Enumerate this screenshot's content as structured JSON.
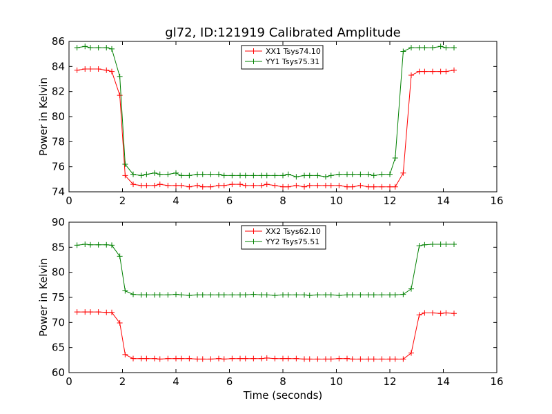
{
  "title": "gl72, ID:121919 Calibrated Amplitude",
  "chart_data": [
    {
      "type": "line",
      "title": "gl72, ID:121919 Calibrated Amplitude",
      "xlabel": "",
      "ylabel": "Power in Kelvin",
      "xlim": [
        0,
        16
      ],
      "ylim": [
        74,
        86
      ],
      "xticks": [
        "0",
        "2",
        "4",
        "6",
        "8",
        "10",
        "12",
        "14",
        "16"
      ],
      "yticks": [
        "74",
        "76",
        "78",
        "80",
        "82",
        "84",
        "86"
      ],
      "grid": false,
      "legend_position": "top-center",
      "x": [
        0.3,
        0.6,
        0.8,
        1.1,
        1.4,
        1.6,
        1.9,
        2.1,
        2.4,
        2.7,
        2.9,
        3.2,
        3.4,
        3.7,
        4.0,
        4.2,
        4.5,
        4.8,
        5.0,
        5.3,
        5.6,
        5.8,
        6.1,
        6.4,
        6.6,
        6.9,
        7.2,
        7.4,
        7.7,
        8.0,
        8.2,
        8.5,
        8.8,
        9.0,
        9.3,
        9.6,
        9.8,
        10.1,
        10.4,
        10.6,
        10.9,
        11.2,
        11.4,
        11.7,
        12.0,
        12.2,
        12.5,
        12.8,
        13.1,
        13.3,
        13.6,
        13.9,
        14.1,
        14.4
      ],
      "series": [
        {
          "name": "XX1 Tsys74.10",
          "color": "#ff0000",
          "values": [
            83.7,
            83.8,
            83.8,
            83.8,
            83.7,
            83.6,
            81.7,
            75.3,
            74.6,
            74.5,
            74.5,
            74.5,
            74.6,
            74.5,
            74.5,
            74.5,
            74.4,
            74.5,
            74.4,
            74.4,
            74.5,
            74.5,
            74.6,
            74.6,
            74.5,
            74.5,
            74.5,
            74.6,
            74.5,
            74.4,
            74.4,
            74.5,
            74.4,
            74.5,
            74.5,
            74.5,
            74.5,
            74.5,
            74.4,
            74.4,
            74.5,
            74.4,
            74.4,
            74.4,
            74.4,
            74.4,
            75.5,
            83.3,
            83.6,
            83.6,
            83.6,
            83.6,
            83.6,
            83.7
          ]
        },
        {
          "name": "YY1 Tsys75.31",
          "color": "#008000",
          "values": [
            85.5,
            85.6,
            85.5,
            85.5,
            85.5,
            85.4,
            83.2,
            76.2,
            75.4,
            75.3,
            75.4,
            75.5,
            75.4,
            75.4,
            75.5,
            75.3,
            75.3,
            75.4,
            75.4,
            75.4,
            75.4,
            75.3,
            75.3,
            75.3,
            75.3,
            75.3,
            75.3,
            75.3,
            75.3,
            75.3,
            75.4,
            75.2,
            75.3,
            75.3,
            75.3,
            75.2,
            75.3,
            75.4,
            75.4,
            75.4,
            75.4,
            75.4,
            75.3,
            75.4,
            75.4,
            76.7,
            85.2,
            85.5,
            85.5,
            85.5,
            85.5,
            85.6,
            85.5,
            85.5
          ]
        }
      ]
    },
    {
      "type": "line",
      "title": "",
      "xlabel": "Time (seconds)",
      "ylabel": "Power in Kelvin",
      "xlim": [
        0,
        16
      ],
      "ylim": [
        60,
        90
      ],
      "xticks": [
        "0",
        "2",
        "4",
        "6",
        "8",
        "10",
        "12",
        "14",
        "16"
      ],
      "yticks": [
        "60",
        "65",
        "70",
        "75",
        "80",
        "85",
        "90"
      ],
      "grid": false,
      "legend_position": "top-center",
      "x": [
        0.3,
        0.6,
        0.8,
        1.1,
        1.4,
        1.6,
        1.9,
        2.1,
        2.4,
        2.7,
        2.9,
        3.2,
        3.4,
        3.7,
        4.0,
        4.2,
        4.5,
        4.8,
        5.0,
        5.3,
        5.6,
        5.8,
        6.1,
        6.4,
        6.6,
        6.9,
        7.2,
        7.4,
        7.7,
        8.0,
        8.2,
        8.5,
        8.8,
        9.0,
        9.3,
        9.6,
        9.8,
        10.1,
        10.4,
        10.6,
        10.9,
        11.2,
        11.4,
        11.7,
        12.0,
        12.2,
        12.5,
        12.8,
        13.1,
        13.3,
        13.6,
        13.9,
        14.1,
        14.4
      ],
      "series": [
        {
          "name": "XX2 Tsys62.10",
          "color": "#ff0000",
          "values": [
            72.1,
            72.1,
            72.1,
            72.1,
            72.0,
            72.0,
            69.9,
            63.6,
            62.8,
            62.8,
            62.8,
            62.8,
            62.7,
            62.8,
            62.8,
            62.8,
            62.8,
            62.7,
            62.7,
            62.7,
            62.8,
            62.7,
            62.8,
            62.8,
            62.8,
            62.8,
            62.8,
            62.9,
            62.8,
            62.8,
            62.8,
            62.8,
            62.7,
            62.7,
            62.7,
            62.7,
            62.7,
            62.8,
            62.8,
            62.7,
            62.7,
            62.7,
            62.7,
            62.7,
            62.7,
            62.7,
            62.7,
            63.9,
            71.5,
            71.9,
            71.9,
            71.8,
            71.9,
            71.8
          ]
        },
        {
          "name": "YY2 Tsys75.51",
          "color": "#008000",
          "values": [
            85.4,
            85.6,
            85.5,
            85.5,
            85.5,
            85.4,
            83.2,
            76.3,
            75.6,
            75.5,
            75.5,
            75.5,
            75.5,
            75.5,
            75.6,
            75.5,
            75.4,
            75.5,
            75.5,
            75.5,
            75.5,
            75.5,
            75.5,
            75.5,
            75.5,
            75.6,
            75.5,
            75.5,
            75.4,
            75.5,
            75.5,
            75.5,
            75.5,
            75.4,
            75.5,
            75.5,
            75.5,
            75.4,
            75.5,
            75.5,
            75.5,
            75.5,
            75.5,
            75.5,
            75.5,
            75.5,
            75.6,
            76.7,
            85.3,
            85.5,
            85.6,
            85.6,
            85.6,
            85.6
          ]
        }
      ]
    }
  ]
}
